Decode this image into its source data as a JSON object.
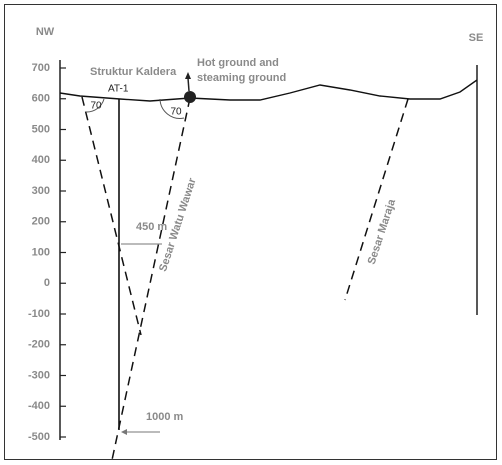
{
  "header": {
    "left": "NW",
    "right": "SE"
  },
  "axis": {
    "ylim": [
      700,
      -500
    ],
    "yticks": [
      700,
      600,
      500,
      400,
      300,
      200,
      100,
      0,
      -100,
      -200,
      -300,
      -400,
      -500
    ]
  },
  "labels": {
    "caldera": "Struktur Kaldera",
    "well": "AT-1",
    "hot_ground": [
      "Hot ground and",
      "steaming ground"
    ],
    "angle_left": "70",
    "angle_right": "70",
    "depth_upper": "450 m",
    "depth_lower": "1000 m",
    "fault_1": "Sesar Watu Wawar",
    "fault_2": "Sesar Maraja"
  }
}
